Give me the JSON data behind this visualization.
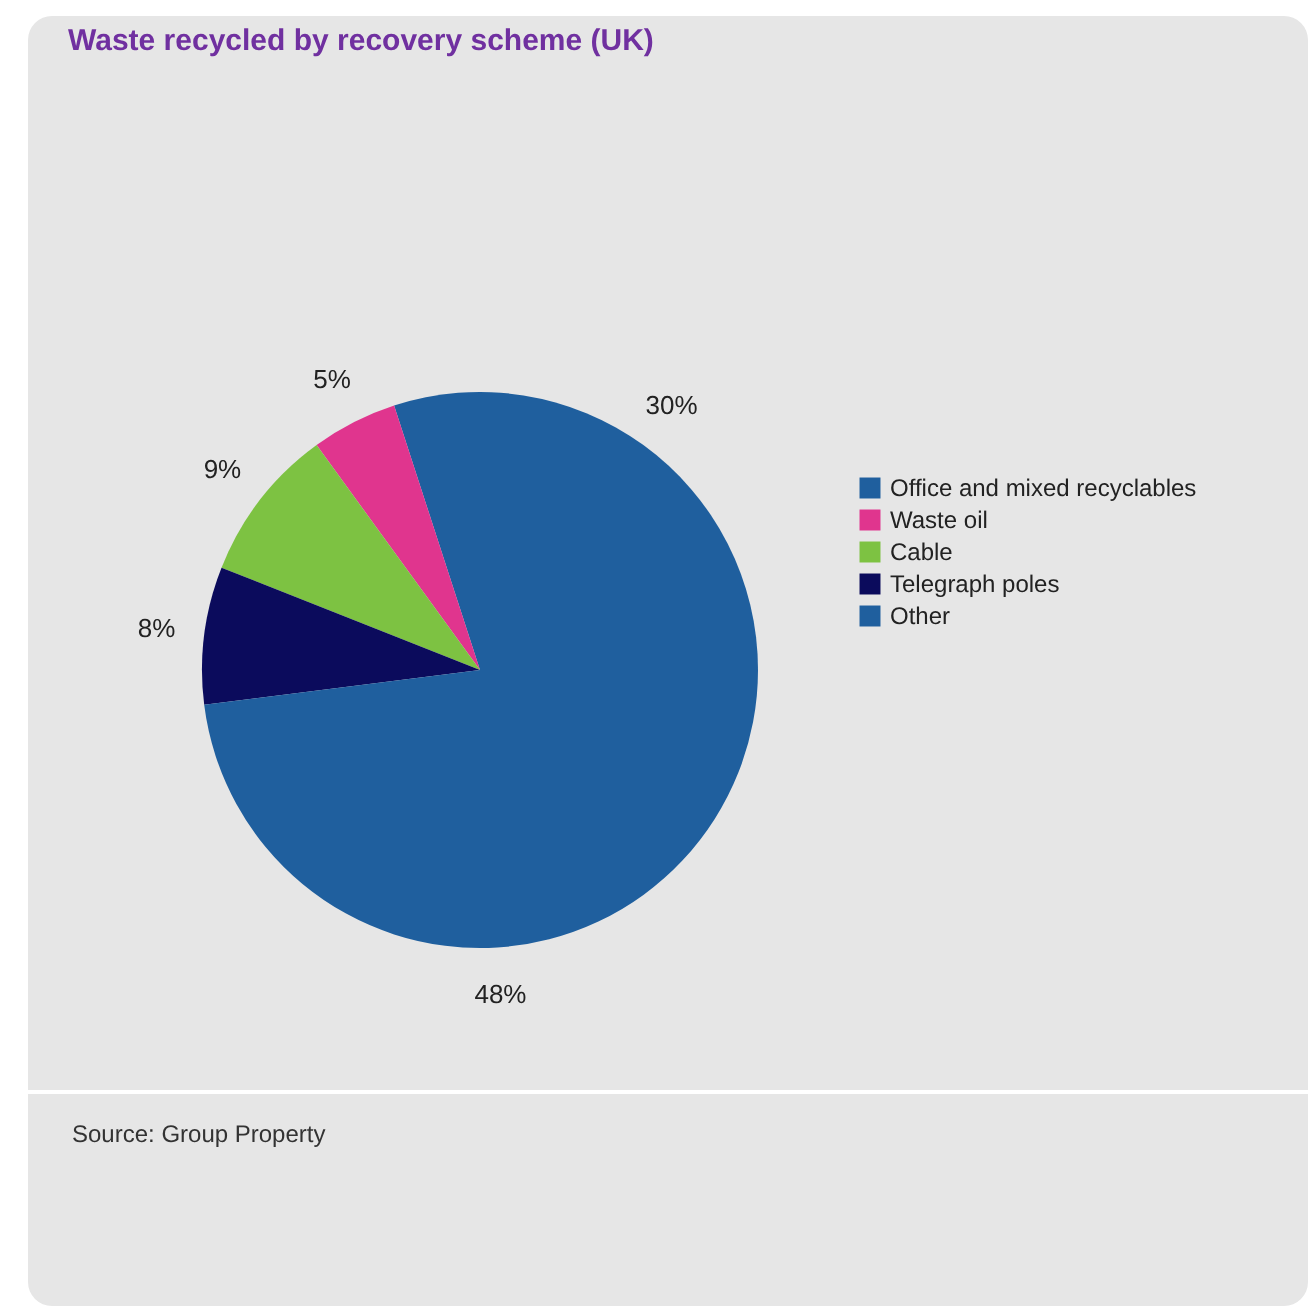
{
  "chart_data": {
    "type": "pie",
    "title": "Waste recycled by recovery scheme (UK)",
    "categories": [
      "Office and mixed recyclables",
      "Waste oil",
      "Cable",
      "Telegraph poles",
      "Other"
    ],
    "values": [
      30,
      5,
      9,
      8,
      48
    ],
    "colors": [
      "#1f5f9e",
      "#e0358e",
      "#7dc242",
      "#0b0b5c",
      "#1f5f9e"
    ],
    "value_labels": [
      "30%",
      "5%",
      "9%",
      "8%",
      "48%"
    ],
    "legend": "right",
    "annotations": [
      "Source: Group Property"
    ]
  }
}
